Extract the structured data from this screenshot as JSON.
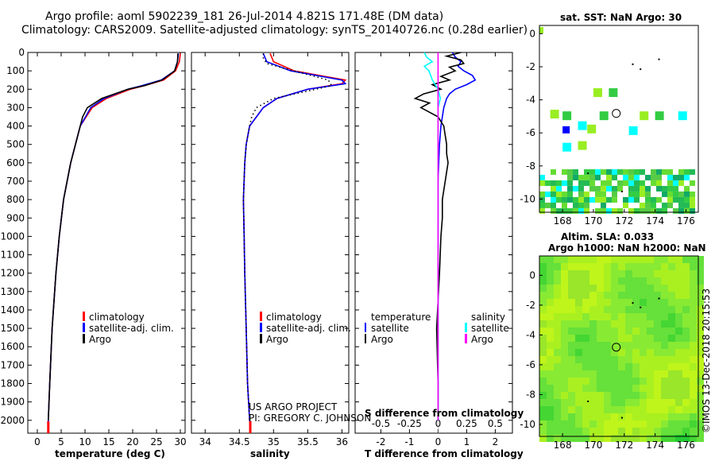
{
  "title": {
    "line1": "Argo profile: aoml 5902239_181 26-Jul-2014 4.821S 171.48E (DM data)",
    "line2": "Climatology: CARS2009. Satellite-adjusted climatology: synTS_20140726.nc (0.28d earlier)"
  },
  "watermark": "©IMOS 13-Dec-2018 20:15:53",
  "colors": {
    "climatology": "#ff0000",
    "satellite": "#0000ff",
    "argo": "#000000",
    "argo_s": "#ff00ff",
    "sat_s": "#00ffff"
  },
  "chart_data": [
    {
      "type": "line",
      "id": "temperature",
      "xlabel": "temperature (deg C)",
      "xlim": [
        -2,
        31
      ],
      "ylim": [
        2070,
        0
      ],
      "xticks": [
        0,
        5,
        10,
        15,
        20,
        25,
        30
      ],
      "yticks": [
        0,
        100,
        200,
        300,
        400,
        500,
        600,
        700,
        800,
        900,
        1000,
        1100,
        1200,
        1300,
        1400,
        1500,
        1600,
        1700,
        1800,
        1900,
        2000
      ],
      "legend": [
        "climatology",
        "satellite-adj. clim.",
        "Argo"
      ],
      "series": [
        {
          "name": "climatology",
          "depth": [
            5,
            50,
            100,
            150,
            180,
            200,
            250,
            300,
            400,
            500,
            600,
            800,
            1000,
            1200,
            1500,
            1800,
            2000,
            2050
          ],
          "values": [
            30.0,
            29.8,
            29.0,
            26.5,
            22.5,
            19.5,
            14.5,
            11.5,
            9.0,
            8.0,
            7.0,
            5.5,
            4.6,
            3.9,
            3.1,
            2.6,
            2.3,
            2.3
          ]
        },
        {
          "name": "satellite-adj. clim.",
          "depth": [
            5,
            50,
            100,
            150,
            180,
            200,
            250,
            300,
            400,
            500,
            600,
            800,
            1000,
            1200,
            1500,
            1800,
            2000,
            2050
          ],
          "values": [
            29.6,
            29.4,
            28.8,
            26.0,
            22.0,
            19.0,
            14.0,
            11.2,
            9.0,
            8.0,
            7.0,
            5.5,
            4.6,
            3.9,
            3.1,
            2.6,
            2.3,
            2.3
          ]
        },
        {
          "name": "Argo",
          "depth": [
            5,
            50,
            100,
            150,
            180,
            200,
            250,
            300,
            350,
            400,
            500,
            600,
            800,
            1000,
            1200,
            1500,
            1800,
            2000
          ],
          "values": [
            29.5,
            29.4,
            28.8,
            26.2,
            22.5,
            19.0,
            13.5,
            10.5,
            9.5,
            9.0,
            8.0,
            7.0,
            5.5,
            4.6,
            3.9,
            3.1,
            2.6,
            2.3
          ]
        }
      ]
    },
    {
      "type": "line",
      "id": "salinity",
      "xlabel": "salinity",
      "xlim": [
        33.8,
        36.1
      ],
      "ylim": [
        2070,
        0
      ],
      "xticks": [
        34,
        34.5,
        35,
        35.5,
        36
      ],
      "xticklabels": [
        "34",
        "34.5",
        "35",
        "35.5",
        "36"
      ],
      "legend": [
        "climatology",
        "satellite-adj. clim.",
        "Argo"
      ],
      "annotation": [
        "US ARGO PROJECT",
        "PI: GREGORY C. JOHNSON"
      ],
      "series": [
        {
          "name": "climatology",
          "depth": [
            5,
            50,
            100,
            130,
            150,
            170,
            200,
            250,
            300,
            400,
            500,
            600,
            800,
            1000,
            1200,
            1500,
            1800,
            2000,
            2050
          ],
          "values": [
            34.95,
            35.0,
            35.3,
            35.75,
            36.05,
            36.0,
            35.5,
            35.05,
            34.85,
            34.65,
            34.6,
            34.58,
            34.56,
            34.57,
            34.58,
            34.6,
            34.62,
            34.65,
            34.66
          ]
        },
        {
          "name": "satellite-adj. clim.",
          "depth": [
            5,
            50,
            100,
            130,
            150,
            170,
            200,
            250,
            300,
            400,
            500,
            600,
            800,
            1000,
            1200,
            1500,
            1800,
            2000,
            2050
          ],
          "values": [
            34.85,
            34.9,
            35.25,
            35.7,
            36.0,
            36.05,
            35.5,
            35.05,
            34.85,
            34.65,
            34.6,
            34.58,
            34.56,
            34.57,
            34.58,
            34.6,
            34.62,
            34.65,
            34.66
          ]
        },
        {
          "name": "Argo",
          "depth": [
            5,
            30,
            60,
            90,
            120,
            150,
            180,
            210,
            250,
            300,
            350,
            400,
            500,
            600,
            800,
            1000,
            1200,
            1500,
            1800,
            2000
          ],
          "values": [
            34.85,
            34.85,
            34.9,
            35.2,
            35.5,
            35.8,
            35.85,
            35.5,
            35.0,
            34.75,
            34.68,
            34.65,
            34.6,
            34.58,
            34.56,
            34.57,
            34.58,
            34.6,
            34.62,
            34.65
          ]
        }
      ]
    },
    {
      "type": "line",
      "id": "difference",
      "xlabel": "T difference from climatology",
      "xlabel_top": "S difference from climatology",
      "xlim": [
        -2.9,
        2.6
      ],
      "ylim": [
        2070,
        0
      ],
      "xticks": [
        -2,
        -1,
        0,
        1,
        2
      ],
      "xticks_s": [
        -0.5,
        -0.25,
        0,
        0.25,
        0.5
      ],
      "xticklabels_s": [
        "-0.5",
        "-0.25",
        "0",
        "0.25",
        "0.5"
      ],
      "legend_left_title": "temperature",
      "legend_right_title": "salinity",
      "legend_left": [
        "satellite",
        "Argo"
      ],
      "legend_right": [
        "satellite",
        "Argo"
      ],
      "series": [
        {
          "name": "T satellite",
          "depth": [
            0,
            25,
            50,
            75,
            100,
            125,
            150,
            175,
            200,
            225,
            250,
            300,
            400,
            500,
            700,
            1000,
            1500,
            2000
          ],
          "values": [
            0.5,
            0.6,
            0.8,
            0.7,
            0.9,
            1.2,
            1.3,
            1.0,
            0.6,
            0.4,
            0.3,
            0.2,
            0.1,
            0.05,
            0.0,
            0.0,
            0.0,
            0.0
          ]
        },
        {
          "name": "T Argo",
          "depth": [
            0,
            20,
            40,
            60,
            80,
            100,
            130,
            150,
            175,
            200,
            225,
            250,
            275,
            300,
            325,
            350,
            400,
            450,
            500,
            550,
            600,
            650,
            700,
            800,
            900,
            1000,
            1200,
            1500,
            1800,
            2000
          ],
          "values": [
            0.8,
            0.3,
            0.8,
            0.9,
            0.4,
            0.6,
            0.1,
            0.4,
            -0.2,
            0.1,
            -0.5,
            -0.8,
            -0.3,
            -0.6,
            -0.3,
            0.0,
            0.2,
            0.25,
            0.3,
            0.3,
            0.35,
            0.3,
            0.25,
            0.15,
            0.15,
            0.1,
            0.05,
            -0.05,
            0.0,
            0.0
          ]
        },
        {
          "name": "S satellite",
          "depth": [
            0,
            25,
            50,
            75,
            100,
            150,
            200,
            250,
            300,
            400,
            500,
            700,
            1000,
            1500,
            2000
          ],
          "values": [
            -0.12,
            -0.1,
            -0.05,
            -0.12,
            -0.08,
            -0.05,
            0.0,
            0.02,
            0.0,
            0.0,
            0.0,
            0.0,
            0.0,
            0.0,
            0.0
          ]
        },
        {
          "name": "S Argo",
          "depth": [
            0,
            2000
          ],
          "values": [
            0,
            0
          ]
        }
      ]
    },
    {
      "type": "heatmap",
      "id": "sst_map",
      "title": "sat. SST: NaN Argo: 30",
      "xlim": [
        166.5,
        176.8
      ],
      "ylim": [
        -10.8,
        0.5
      ],
      "xticks": [
        168,
        170,
        172,
        174,
        176
      ],
      "yticks": [
        0,
        -2,
        -4,
        -6,
        -8,
        -10
      ],
      "argo_position": {
        "lon": 171.48,
        "lat": -4.821
      }
    },
    {
      "type": "heatmap",
      "id": "sla_map",
      "title": "Altim. SLA: 0.033",
      "subtitle": "Argo h1000: NaN h2000: NaN",
      "xlim": [
        166.5,
        176.8
      ],
      "ylim": [
        -10.8,
        1.3
      ],
      "xticks": [
        168,
        170,
        172,
        174,
        176
      ],
      "yticks": [
        0,
        -2,
        -4,
        -6,
        -8,
        -10
      ],
      "argo_position": {
        "lon": 171.48,
        "lat": -4.821
      }
    }
  ]
}
